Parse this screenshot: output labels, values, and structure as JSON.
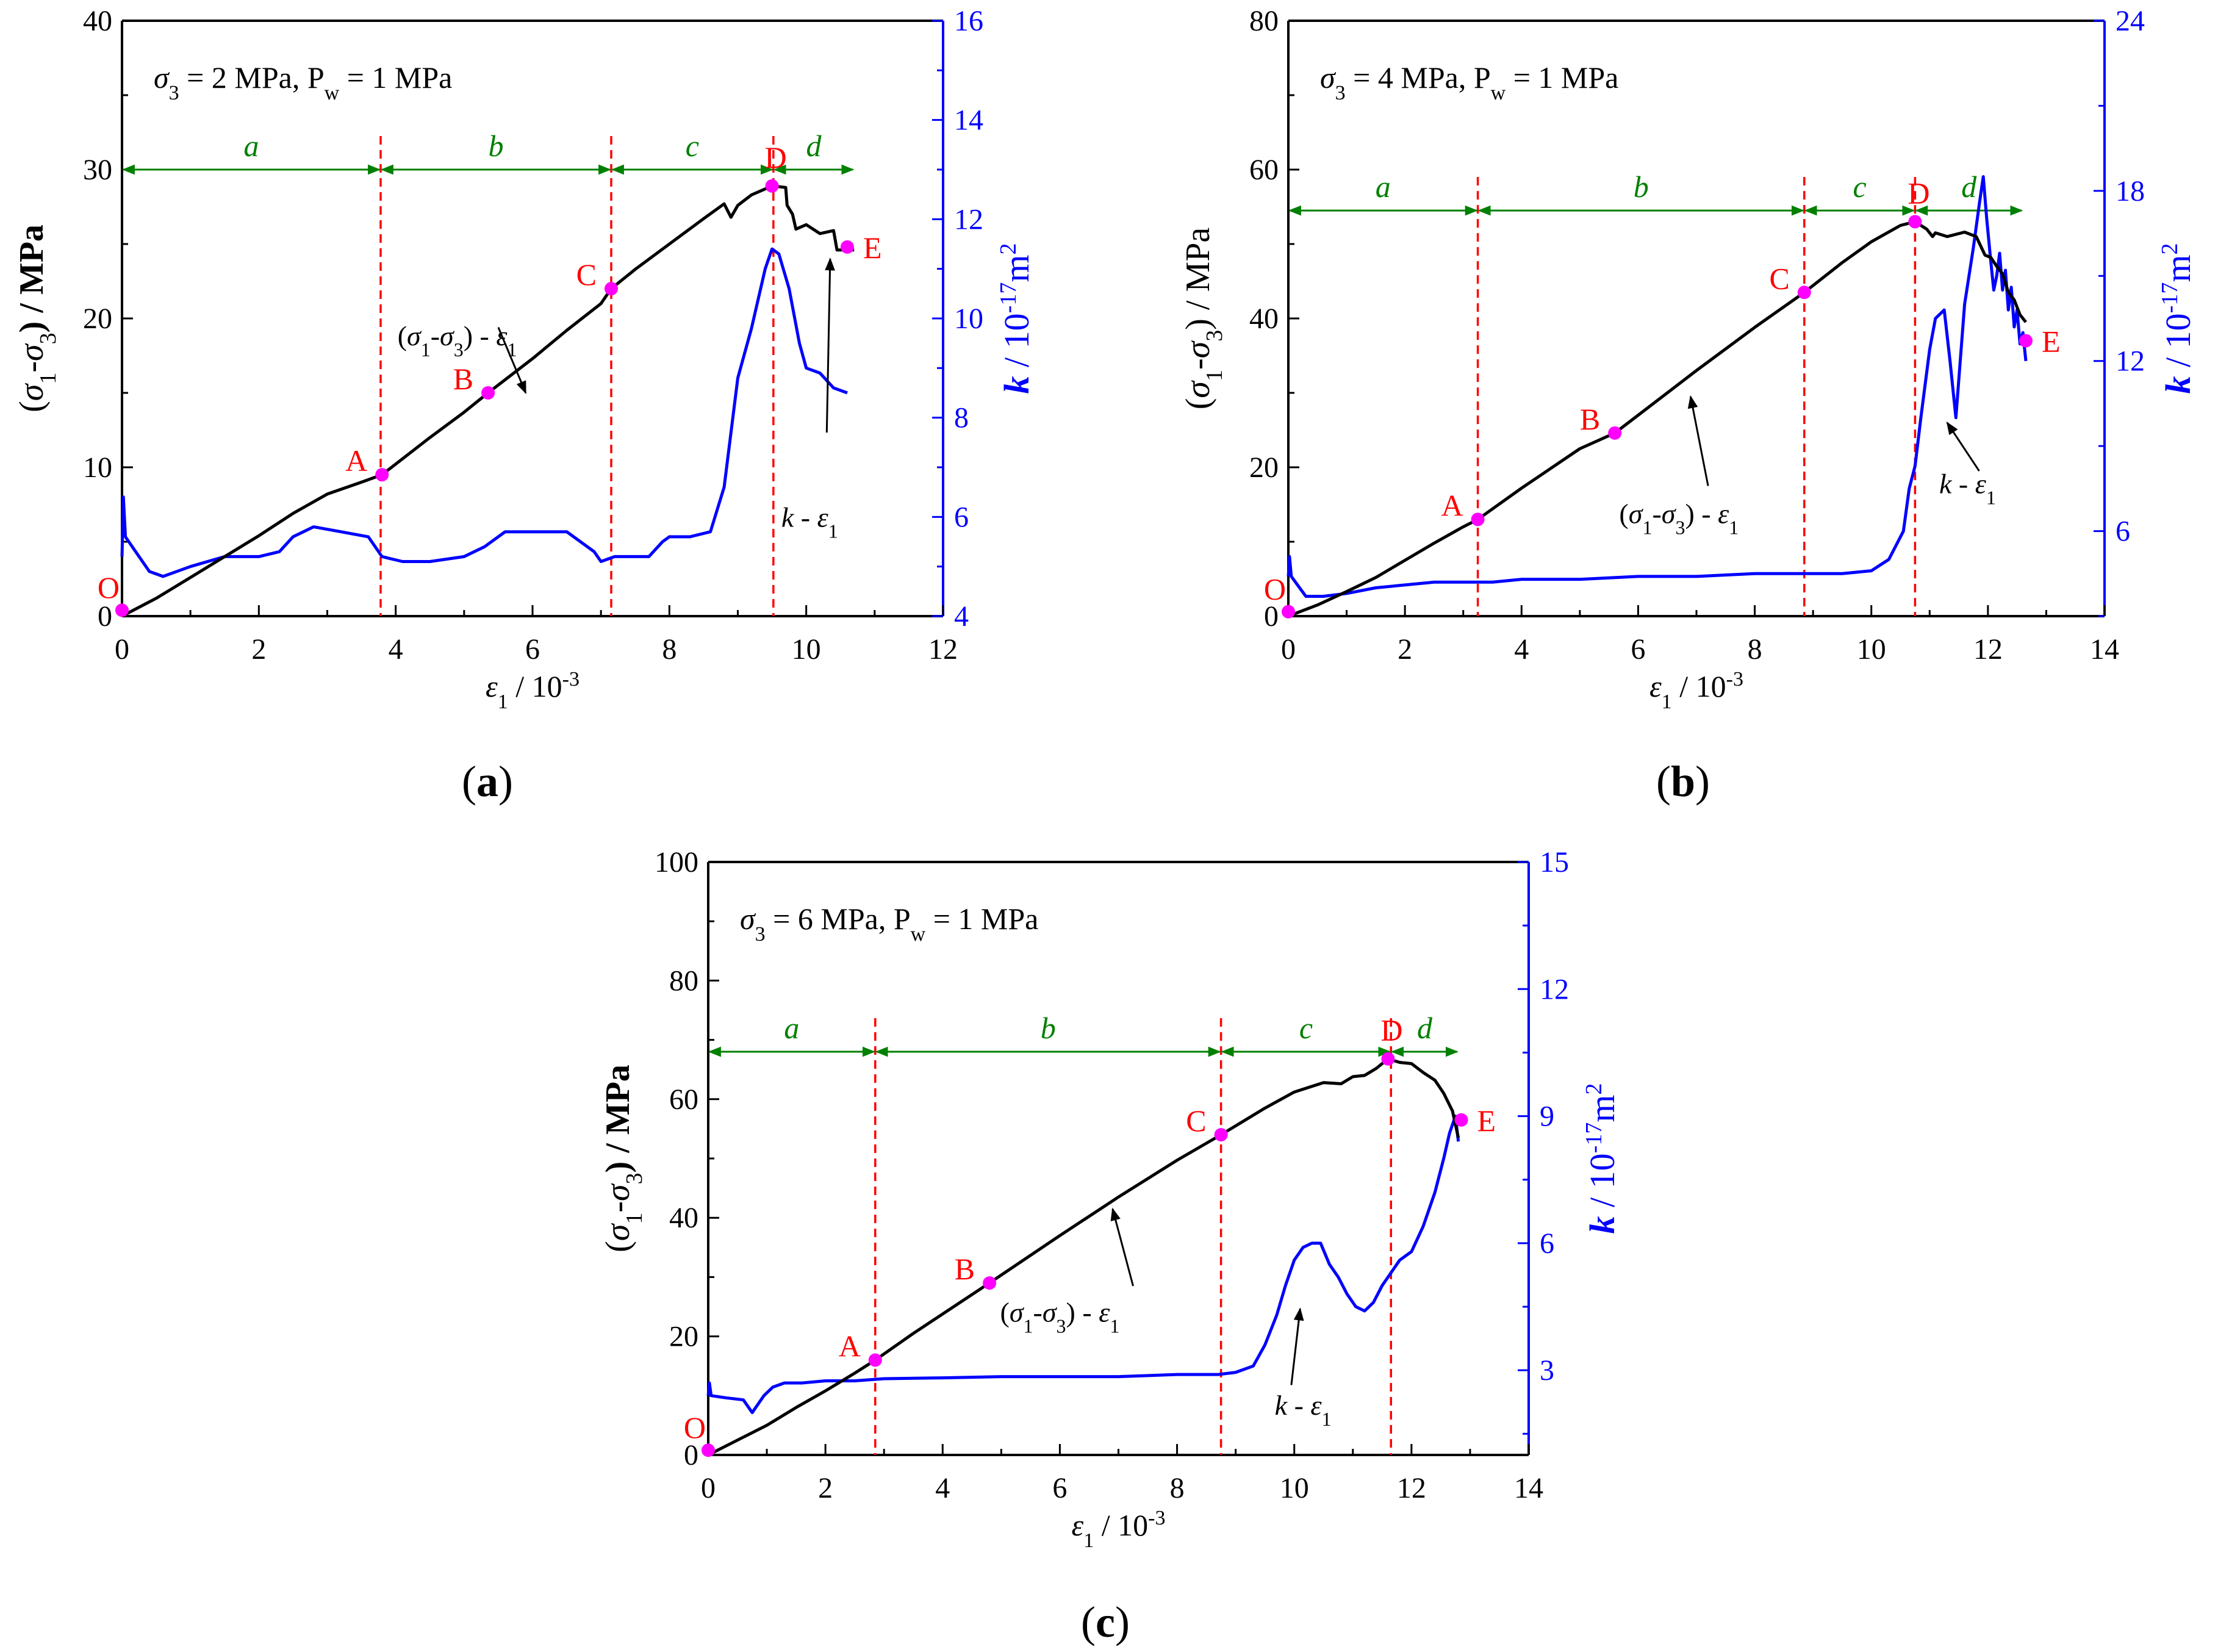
{
  "colors": {
    "stress_curve": "#000000",
    "perm_curve": "#0000ff",
    "stage_arrow": "#008000",
    "divider": "#ff0000",
    "point_marker": "#ff00ff",
    "point_label": "#ff0000",
    "axis": "#000000",
    "right_axis": "#0000ff"
  },
  "captions": {
    "a": {
      "open": "(",
      "letter": "a",
      "close": ")"
    },
    "b": {
      "open": "(",
      "letter": "b",
      "close": ")"
    },
    "c": {
      "open": "(",
      "letter": "c",
      "close": ")"
    }
  },
  "chart_data": [
    {
      "id": "a",
      "type": "line",
      "condition": {
        "sigma_symbol": "σ",
        "sigma_sub": "3",
        "sigma_value": " = 2 MPa, P",
        "pw_sub": "w",
        "pw_value": " = 1 MPa"
      },
      "xlabel": {
        "main": "ε",
        "sub": "1",
        "rest": " / 10",
        "sup": "-3"
      },
      "ylabel_left": "(σ1-σ3) / MPa",
      "ylabel_right": "k / 10-17m2",
      "xlim": [
        0,
        12
      ],
      "xticks": [
        0,
        2,
        4,
        6,
        8,
        10,
        12
      ],
      "ylim_left": [
        0,
        40
      ],
      "yticks_left": [
        0,
        10,
        20,
        30,
        40
      ],
      "ylim_right": [
        4,
        16
      ],
      "yticks_right": [
        4,
        6,
        8,
        10,
        12,
        14,
        16
      ],
      "stage_y": 30,
      "stage_bounds": [
        0,
        3.78,
        7.15,
        9.52,
        10.7
      ],
      "stage_labels": [
        "a",
        "b",
        "c",
        "d"
      ],
      "dividers": [
        3.78,
        7.15,
        9.52
      ],
      "points": [
        {
          "label": "O",
          "x": 0.0,
          "y": 0.4
        },
        {
          "label": "A",
          "x": 3.8,
          "y": 9.5
        },
        {
          "label": "B",
          "x": 5.35,
          "y": 15.0
        },
        {
          "label": "C",
          "x": 7.15,
          "y": 22.0
        },
        {
          "label": "D",
          "x": 9.5,
          "y": 28.9
        },
        {
          "label": "E",
          "x": 10.6,
          "y": 24.8
        }
      ],
      "stress_curve": {
        "name": "(σ1-σ3) - ε1",
        "x": [
          0,
          0.5,
          1,
          1.5,
          2,
          2.5,
          3,
          3.5,
          3.8,
          4.5,
          5,
          5.35,
          6,
          6.5,
          7,
          7.15,
          7.5,
          8,
          8.5,
          8.8,
          8.9,
          9.0,
          9.2,
          9.5,
          9.7,
          9.72,
          9.8,
          9.85,
          10.0,
          10.2,
          10.4,
          10.45,
          10.7
        ],
        "y": [
          0,
          1.2,
          2.6,
          4.0,
          5.4,
          6.9,
          8.2,
          9.0,
          9.5,
          12.0,
          13.7,
          15.0,
          17.3,
          19.2,
          21.0,
          22.0,
          23.3,
          25.0,
          26.7,
          27.7,
          26.8,
          27.6,
          28.3,
          28.9,
          28.8,
          27.6,
          27.0,
          26.0,
          26.3,
          25.7,
          25.9,
          24.6,
          24.6
        ]
      },
      "perm_curve": {
        "name": "k - ε1",
        "x": [
          0,
          0.02,
          0.05,
          0.2,
          0.4,
          0.6,
          0.8,
          1.0,
          1.5,
          2.0,
          2.3,
          2.5,
          2.8,
          3.2,
          3.6,
          3.8,
          4.1,
          4.5,
          5.0,
          5.3,
          5.6,
          5.8,
          6.2,
          6.5,
          6.9,
          7.0,
          7.2,
          7.5,
          7.7,
          7.9,
          8.0,
          8.3,
          8.6,
          8.8,
          9.0,
          9.2,
          9.4,
          9.5,
          9.6,
          9.75,
          9.9,
          10.0,
          10.2,
          10.4,
          10.6
        ],
        "y": [
          5.2,
          6.4,
          5.6,
          5.3,
          4.9,
          4.8,
          4.9,
          5.0,
          5.2,
          5.2,
          5.3,
          5.6,
          5.8,
          5.7,
          5.6,
          5.2,
          5.1,
          5.1,
          5.2,
          5.4,
          5.7,
          5.7,
          5.7,
          5.7,
          5.3,
          5.1,
          5.2,
          5.2,
          5.2,
          5.5,
          5.6,
          5.6,
          5.7,
          6.6,
          8.8,
          9.8,
          11.0,
          11.4,
          11.3,
          10.6,
          9.5,
          9.0,
          8.9,
          8.6,
          8.5
        ]
      },
      "annotations": [
        {
          "text_main": "(σ",
          "sub1": "1",
          "mid": "-σ",
          "sub2": "3",
          "tail": ") - ε",
          "sub3": "1",
          "tx": 4.9,
          "ty": 18.2,
          "ax": 5.9,
          "ay": 15.0,
          "bx": 5.5,
          "by": 19.4
        },
        {
          "text_main": "k",
          "sub1": "",
          "mid": "",
          "sub2": "",
          "tail": " - ε",
          "sub3": "1",
          "tx": 10.05,
          "ty": 5.8,
          "ax": 10.35,
          "ay": 11.2,
          "bx": 10.3,
          "by": 7.7
        }
      ]
    },
    {
      "id": "b",
      "type": "line",
      "condition": {
        "sigma_symbol": "σ",
        "sigma_sub": "3",
        "sigma_value": " = 4 MPa, P",
        "pw_sub": "w",
        "pw_value": " = 1 MPa"
      },
      "xlabel": {
        "main": "ε",
        "sub": "1",
        "rest": " / 10",
        "sup": "-3"
      },
      "ylabel_left": "(σ1-σ3) / MPa",
      "ylabel_right": "k / 10-17m2",
      "xlim": [
        0,
        14
      ],
      "xticks": [
        0,
        2,
        4,
        6,
        8,
        10,
        12,
        14
      ],
      "ylim_left": [
        0,
        80
      ],
      "yticks_left": [
        0,
        20,
        40,
        60,
        80
      ],
      "ylim_right": [
        3,
        24
      ],
      "yticks_right": [
        6,
        12,
        18,
        24
      ],
      "stage_y": 54.5,
      "stage_bounds": [
        0,
        3.25,
        8.85,
        10.75,
        12.6
      ],
      "stage_labels": [
        "a",
        "b",
        "c",
        "d"
      ],
      "dividers": [
        3.25,
        8.85,
        10.75
      ],
      "points": [
        {
          "label": "O",
          "x": 0.0,
          "y": 0.6
        },
        {
          "label": "A",
          "x": 3.25,
          "y": 13.0
        },
        {
          "label": "B",
          "x": 5.6,
          "y": 24.6
        },
        {
          "label": "C",
          "x": 8.85,
          "y": 43.5
        },
        {
          "label": "D",
          "x": 10.75,
          "y": 53.0
        },
        {
          "label": "E",
          "x": 12.65,
          "y": 37.0
        }
      ],
      "stress_curve": {
        "name": "(σ1-σ3) - ε1",
        "x": [
          0,
          0.5,
          1,
          1.5,
          2,
          2.5,
          3,
          3.25,
          4,
          5,
          5.6,
          6,
          7,
          8,
          8.85,
          9.5,
          10,
          10.5,
          10.75,
          10.95,
          11.05,
          11.1,
          11.3,
          11.6,
          11.8,
          11.95,
          12.05,
          12.15,
          12.25,
          12.35,
          12.45,
          12.55,
          12.65
        ],
        "y": [
          0,
          1.5,
          3.3,
          5.2,
          7.5,
          9.8,
          12.0,
          13.0,
          17.2,
          22.5,
          24.6,
          27.0,
          33.0,
          38.8,
          43.5,
          47.5,
          50.3,
          52.5,
          53.0,
          52.0,
          51.0,
          51.5,
          51.0,
          51.6,
          51.0,
          48.5,
          48.2,
          47.0,
          46.0,
          43.5,
          42.5,
          40.5,
          39.5
        ]
      },
      "perm_curve": {
        "name": "k - ε1",
        "x": [
          0,
          0.02,
          0.05,
          0.3,
          0.6,
          1.0,
          1.5,
          2.0,
          2.5,
          3.0,
          3.5,
          4.0,
          5.0,
          6.0,
          7.0,
          8.0,
          9.0,
          9.5,
          10.0,
          10.3,
          10.55,
          10.65,
          10.75,
          10.85,
          11.0,
          11.1,
          11.25,
          11.35,
          11.45,
          11.6,
          11.75,
          11.85,
          11.92,
          11.98,
          12.05,
          12.1,
          12.15,
          12.2,
          12.25,
          12.3,
          12.35,
          12.4,
          12.45,
          12.5,
          12.55,
          12.6,
          12.65
        ],
        "y": [
          4.4,
          5.1,
          4.4,
          3.7,
          3.7,
          3.8,
          4.0,
          4.1,
          4.2,
          4.2,
          4.2,
          4.3,
          4.3,
          4.4,
          4.4,
          4.5,
          4.5,
          4.5,
          4.6,
          5.0,
          6.0,
          7.5,
          8.3,
          10.0,
          12.4,
          13.5,
          13.8,
          12.0,
          10.0,
          14.0,
          16.0,
          17.5,
          18.5,
          17.0,
          15.5,
          14.5,
          15.0,
          15.8,
          14.5,
          15.2,
          13.8,
          14.6,
          13.2,
          13.8,
          12.6,
          13.0,
          12.0
        ]
      },
      "annotations": [
        {
          "text_main": "(σ",
          "sub1": "1",
          "mid": "-σ",
          "sub2": "3",
          "tail": ") - ε",
          "sub3": "1",
          "tx": 6.7,
          "ty": 12.5,
          "ax": 6.9,
          "ay": 29.5,
          "bx": 7.2,
          "by": 17.5
        },
        {
          "text_main": "k",
          "sub1": "",
          "mid": "",
          "sub2": "",
          "tail": " - ε",
          "sub3": "1",
          "tx": 11.65,
          "ty": 16.5,
          "ax": 11.3,
          "ay": 26.0,
          "bx": 11.85,
          "by": 19.5
        }
      ]
    },
    {
      "id": "c",
      "type": "line",
      "condition": {
        "sigma_symbol": "σ",
        "sigma_sub": "3",
        "sigma_value": " = 6 MPa, P",
        "pw_sub": "w",
        "pw_value": " = 1 MPa"
      },
      "xlabel": {
        "main": "ε",
        "sub": "1",
        "rest": " / 10",
        "sup": "-3"
      },
      "ylabel_left": "(σ1-σ3) / MPa",
      "ylabel_right": "k / 10-17m2",
      "xlim": [
        0,
        14
      ],
      "xticks": [
        0,
        2,
        4,
        6,
        8,
        10,
        12,
        14
      ],
      "ylim_left": [
        0,
        100
      ],
      "yticks_left": [
        0,
        20,
        40,
        60,
        80,
        100
      ],
      "ylim_right": [
        1,
        15
      ],
      "yticks_right": [
        3,
        6,
        9,
        12,
        15
      ],
      "stage_y": 68,
      "stage_bounds": [
        0,
        2.85,
        8.75,
        11.65,
        12.8
      ],
      "stage_labels": [
        "a",
        "b",
        "c",
        "d"
      ],
      "dividers": [
        2.85,
        8.75,
        11.65
      ],
      "points": [
        {
          "label": "O",
          "x": 0.0,
          "y": 0.8
        },
        {
          "label": "A",
          "x": 2.85,
          "y": 16.0
        },
        {
          "label": "B",
          "x": 4.8,
          "y": 29.0
        },
        {
          "label": "C",
          "x": 8.75,
          "y": 54.0
        },
        {
          "label": "D",
          "x": 11.6,
          "y": 66.8
        },
        {
          "label": "E",
          "x": 12.85,
          "y": 56.5
        }
      ],
      "stress_curve": {
        "name": "(σ1-σ3) - ε1",
        "x": [
          0,
          0.5,
          1,
          1.5,
          2,
          2.5,
          2.85,
          3.5,
          4.8,
          6,
          7,
          8,
          8.75,
          9.5,
          10,
          10.5,
          10.8,
          11.0,
          11.2,
          11.4,
          11.6,
          11.8,
          12.0,
          12.2,
          12.4,
          12.55,
          12.7,
          12.8
        ],
        "y": [
          0,
          2.5,
          5.0,
          8.0,
          10.8,
          13.8,
          16.0,
          20.5,
          29.0,
          37.0,
          43.5,
          49.7,
          54.0,
          58.5,
          61.2,
          62.8,
          62.6,
          63.8,
          64.0,
          65.2,
          66.8,
          66.2,
          66.0,
          64.5,
          63.2,
          61.0,
          58.0,
          53.5
        ]
      },
      "perm_curve": {
        "name": "k - ε1",
        "x": [
          0,
          0.02,
          0.05,
          0.3,
          0.6,
          0.75,
          0.85,
          0.95,
          1.1,
          1.3,
          1.6,
          2.0,
          2.5,
          3.0,
          4.0,
          5.0,
          6.0,
          7.0,
          8.0,
          8.7,
          9.0,
          9.3,
          9.5,
          9.7,
          9.85,
          10.0,
          10.15,
          10.3,
          10.45,
          10.6,
          10.75,
          10.9,
          11.05,
          11.2,
          11.35,
          11.5,
          11.65,
          11.8,
          12.0,
          12.2,
          12.4,
          12.55,
          12.65,
          12.75,
          12.8
        ],
        "y": [
          2.4,
          2.7,
          2.4,
          2.35,
          2.3,
          2.0,
          2.2,
          2.4,
          2.6,
          2.7,
          2.7,
          2.75,
          2.75,
          2.8,
          2.82,
          2.85,
          2.85,
          2.85,
          2.9,
          2.9,
          2.95,
          3.1,
          3.6,
          4.3,
          5.0,
          5.6,
          5.9,
          6.0,
          6.0,
          5.5,
          5.2,
          4.8,
          4.5,
          4.4,
          4.6,
          5.0,
          5.3,
          5.6,
          5.8,
          6.4,
          7.2,
          8.0,
          8.6,
          9.0,
          8.4
        ]
      },
      "annotations": [
        {
          "text_main": "(σ",
          "sub1": "1",
          "mid": "-σ",
          "sub2": "3",
          "tail": ") - ε",
          "sub3": "1",
          "tx": 6.0,
          "ty": 22.5,
          "ax": 6.9,
          "ay": 41.5,
          "bx": 7.25,
          "by": 28.5
        },
        {
          "text_main": "k",
          "sub1": "",
          "mid": "",
          "sub2": "",
          "tail": " - ε",
          "sub3": "1",
          "tx": 10.15,
          "ty": 1.95,
          "ax": 10.1,
          "ay": 4.45,
          "bx": 9.95,
          "by": 2.65
        }
      ]
    }
  ]
}
